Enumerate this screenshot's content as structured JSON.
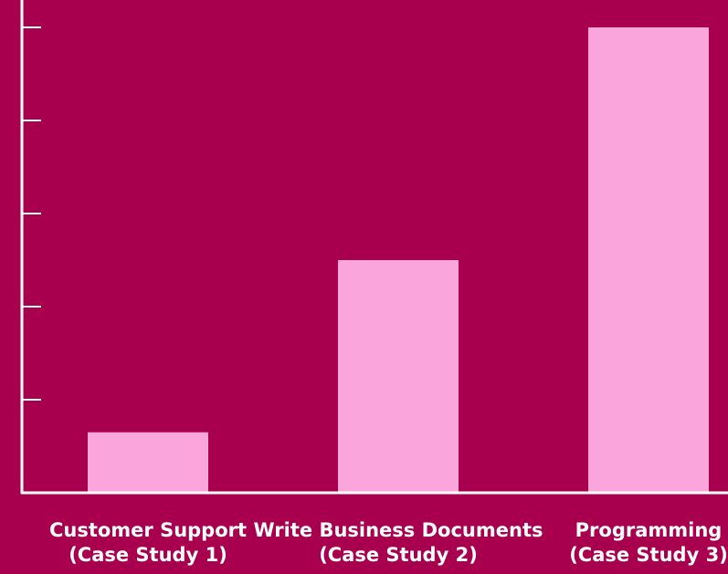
{
  "chart_data": {
    "type": "bar",
    "categories": [
      [
        "Customer Support",
        "(Case Study 1)"
      ],
      [
        "Write Business Documents",
        "(Case Study 2)"
      ],
      [
        "Programming",
        "(Case Study 3)"
      ]
    ],
    "values": [
      13,
      50,
      100
    ],
    "ylim": [
      0,
      100
    ],
    "yticks": [
      0,
      20,
      40,
      60,
      80,
      100
    ],
    "grid": false,
    "colors": {
      "background": "#a8004f",
      "bar": "#fba5dd",
      "axis": "#ffffff",
      "text": "#ffffff"
    }
  }
}
